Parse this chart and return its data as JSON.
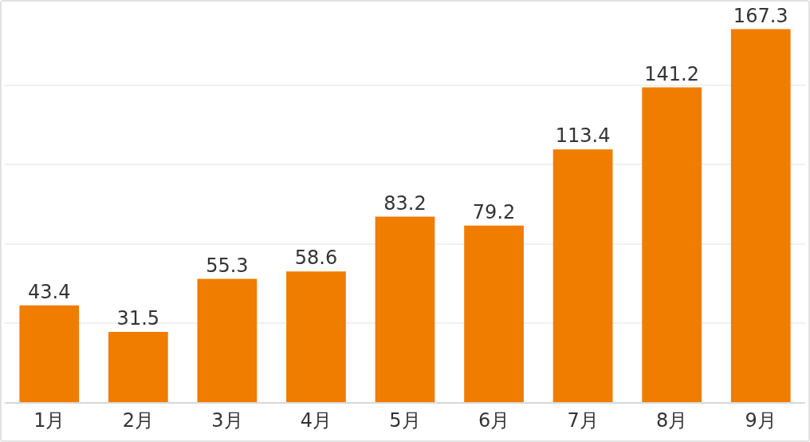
{
  "chart_data": {
    "type": "bar",
    "categories": [
      "1月",
      "2月",
      "3月",
      "4月",
      "5月",
      "6月",
      "7月",
      "8月",
      "9月"
    ],
    "values": [
      43.4,
      31.5,
      55.3,
      58.6,
      83.2,
      79.2,
      113.4,
      141.2,
      167.3
    ],
    "color": "#f07c00",
    "yticks": [
      {
        "value": 0,
        "label": null
      },
      {
        "value": 35.5,
        "label": null
      },
      {
        "value": 71,
        "label": null
      },
      {
        "value": 106.5,
        "label": null
      },
      {
        "value": 142,
        "label": null
      }
    ],
    "tick_labels": "x",
    "grid": "y",
    "data_labels": true,
    "legend": false
  }
}
